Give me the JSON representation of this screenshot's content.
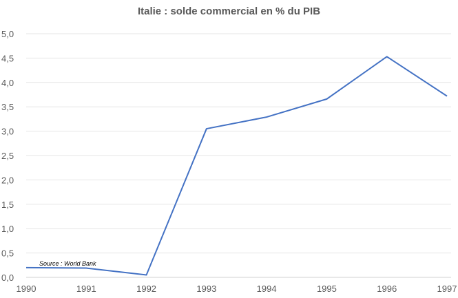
{
  "chart_data": {
    "type": "line",
    "title": "Italie : solde commercial en % du PIB",
    "xlabel": "",
    "ylabel": "",
    "x": [
      "1990",
      "1991",
      "1992",
      "1993",
      "1994",
      "1995",
      "1996",
      "1997"
    ],
    "series": [
      {
        "name": "Solde commercial (% du PIB)",
        "values": [
          0.2,
          0.19,
          0.05,
          3.05,
          3.29,
          3.66,
          4.53,
          3.72
        ],
        "color": "#4472C4"
      }
    ],
    "ylim": [
      0,
      5
    ],
    "yticks": [
      "0,0",
      "0,5",
      "1,0",
      "1,5",
      "2,0",
      "2,5",
      "3,0",
      "3,5",
      "4,0",
      "4,5",
      "5,0"
    ],
    "grid": true,
    "legend": "none",
    "annotation": "Source : World Bank"
  }
}
